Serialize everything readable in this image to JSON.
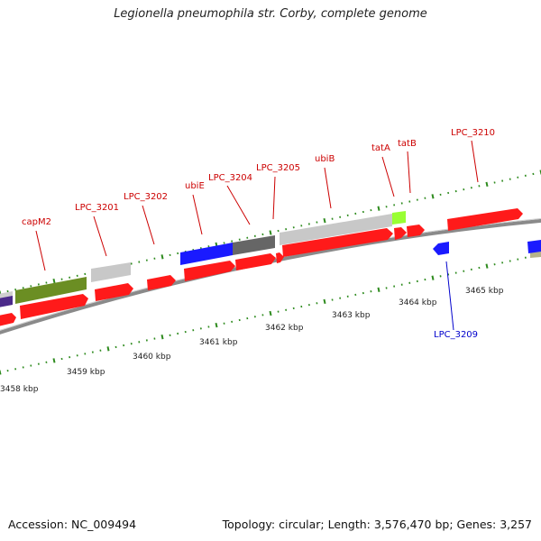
{
  "title": "Legionella pneumophila str. Corby, complete genome",
  "footer": {
    "accession": "Accession: NC_009494",
    "summary": "Topology: circular; Length: 3,576,470 bp; Genes: 3,257"
  },
  "colors": {
    "red": "#ff1a1a",
    "blue": "#1a1aff",
    "olive": "#6b8e23",
    "light_gray": "#c8c8c8",
    "dark_gray": "#666666",
    "light_green": "#99ff33",
    "tan": "#b5b28a",
    "purple": "#4b2a8a",
    "backbone": "#888888",
    "tick": "#2e8b1e",
    "label_red": "#cc0000",
    "label_blue": "#0000cc"
  },
  "ticks": [
    {
      "label": "3458 kbp",
      "kbp": 3458
    },
    {
      "label": "3459 kbp",
      "kbp": 3459
    },
    {
      "label": "3460 kbp",
      "kbp": 3460
    },
    {
      "label": "3461 kbp",
      "kbp": 3461
    },
    {
      "label": "3462 kbp",
      "kbp": 3462
    },
    {
      "label": "3463 kbp",
      "kbp": 3463
    },
    {
      "label": "3464 kbp",
      "kbp": 3464
    },
    {
      "label": "3465 kbp",
      "kbp": 3465
    }
  ],
  "gene_labels": [
    {
      "text": "capM2",
      "kind": "top"
    },
    {
      "text": "LPC_3201",
      "kind": "top"
    },
    {
      "text": "LPC_3202",
      "kind": "top"
    },
    {
      "text": "ubiE",
      "kind": "top"
    },
    {
      "text": "LPC_3204",
      "kind": "top"
    },
    {
      "text": "LPC_3205",
      "kind": "top"
    },
    {
      "text": "ubiB",
      "kind": "top"
    },
    {
      "text": "tatA",
      "kind": "top"
    },
    {
      "text": "tatB",
      "kind": "top"
    },
    {
      "text": "LPC_3210",
      "kind": "top"
    },
    {
      "text": "LPC_3209",
      "kind": "bottom"
    }
  ]
}
